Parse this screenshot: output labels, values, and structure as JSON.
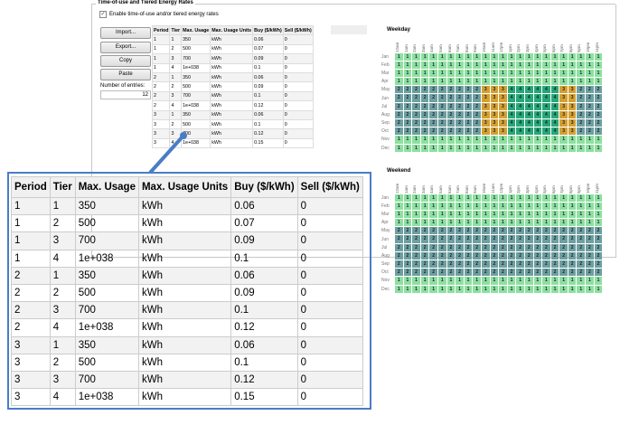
{
  "group_title": "Time-of-use and Tiered Energy Rates",
  "enable_label": "Enable time-of-use and/or tiered energy rates",
  "enable_checked": true,
  "buttons": {
    "import": "Import...",
    "export": "Export...",
    "copy": "Copy",
    "paste": "Paste"
  },
  "entries_label": "Number of entries:",
  "entries_value": "12",
  "columns": [
    "Period",
    "Tier",
    "Max. Usage",
    "Max. Usage Units",
    "Buy ($/kWh)",
    "Sell ($/kWh)"
  ],
  "rows": [
    [
      "1",
      "1",
      "350",
      "kWh",
      "0.06",
      "0"
    ],
    [
      "1",
      "2",
      "500",
      "kWh",
      "0.07",
      "0"
    ],
    [
      "1",
      "3",
      "700",
      "kWh",
      "0.09",
      "0"
    ],
    [
      "1",
      "4",
      "1e+038",
      "kWh",
      "0.1",
      "0"
    ],
    [
      "2",
      "1",
      "350",
      "kWh",
      "0.06",
      "0"
    ],
    [
      "2",
      "2",
      "500",
      "kWh",
      "0.09",
      "0"
    ],
    [
      "2",
      "3",
      "700",
      "kWh",
      "0.1",
      "0"
    ],
    [
      "2",
      "4",
      "1e+038",
      "kWh",
      "0.12",
      "0"
    ],
    [
      "3",
      "1",
      "350",
      "kWh",
      "0.06",
      "0"
    ],
    [
      "3",
      "2",
      "500",
      "kWh",
      "0.1",
      "0"
    ],
    [
      "3",
      "3",
      "700",
      "kWh",
      "0.12",
      "0"
    ],
    [
      "3",
      "4",
      "1e+038",
      "kWh",
      "0.15",
      "0"
    ]
  ],
  "hours": [
    "12am",
    "1am",
    "2am",
    "3am",
    "4am",
    "5am",
    "6am",
    "7am",
    "8am",
    "9am",
    "10am",
    "11am",
    "12pm",
    "1pm",
    "2pm",
    "3pm",
    "4pm",
    "5pm",
    "6pm",
    "7pm",
    "8pm",
    "9pm",
    "10pm",
    "11pm"
  ],
  "months": [
    "Jan",
    "Feb",
    "Mar",
    "Apr",
    "May",
    "Jun",
    "Jul",
    "Aug",
    "Sep",
    "Oct",
    "Nov",
    "Dec"
  ],
  "period_colors": {
    "1": "#8ee0a0",
    "2": "#6f9fa0",
    "3": "#d5a030",
    "4": "#28a878"
  },
  "weekday": {
    "title": "Weekday",
    "schedule": [
      "111111111111111111111111",
      "111111111111111111111111",
      "111111111111111111111111",
      "111111111111111111111111",
      "222222222233344444433222",
      "222222222233344444433222",
      "222222222233344444433222",
      "222222222233344444433222",
      "222222222233344444433222",
      "222222222233344444433222",
      "111111111111111111111111",
      "111111111111111111111111"
    ]
  },
  "weekend": {
    "title": "Weekend",
    "schedule": [
      "111111111111111111111111",
      "111111111111111111111111",
      "111111111111111111111111",
      "111111111111111111111111",
      "222222222222222222222222",
      "222222222222222222222222",
      "222222222222222222222222",
      "222222222222222222222222",
      "222222222222222222222222",
      "222222222222222222222222",
      "111111111111111111111111",
      "111111111111111111111111"
    ]
  }
}
